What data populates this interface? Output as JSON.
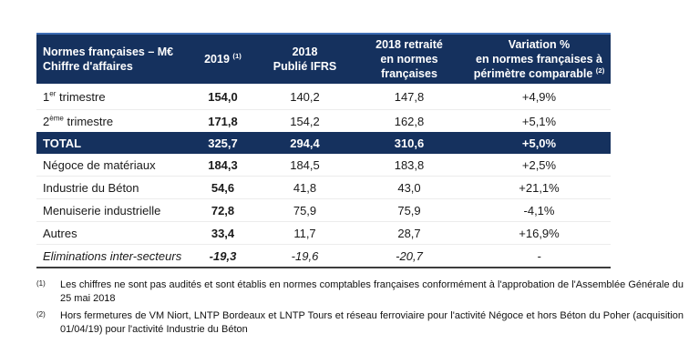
{
  "colors": {
    "navy": "#15315e",
    "header_top_line": "#3e6db5",
    "row_divider": "#ececec",
    "table_bottom_line": "#3d3d3d"
  },
  "table": {
    "header": {
      "col1_line1": "Normes françaises – M€",
      "col1_line2": "Chiffre d'affaires",
      "col2_main": "2019",
      "col2_sup": "(1)",
      "col3_line1": "2018",
      "col3_line2": "Publié IFRS",
      "col4_line1": "2018 retraité",
      "col4_line2": "en normes françaises",
      "col5_line1": "Variation %",
      "col5_line2": "en normes françaises à",
      "col5_line3": "périmètre comparable",
      "col5_sup": "(2)"
    },
    "rows": [
      {
        "label_pre": "1",
        "label_sup": "er",
        "label_post": " trimestre",
        "y2019": "154,0",
        "y2018_publie": "140,2",
        "y2018_retraite": "147,8",
        "variation": "+4,9%"
      },
      {
        "label_pre": "2",
        "label_sup": "ème",
        "label_post": " trimestre",
        "y2019": "171,8",
        "y2018_publie": "154,2",
        "y2018_retraite": "162,8",
        "variation": "+5,1%"
      },
      {
        "label_pre": "TOTAL",
        "label_sup": "",
        "label_post": "",
        "y2019": "325,7",
        "y2018_publie": "294,4",
        "y2018_retraite": "310,6",
        "variation": "+5,0%"
      },
      {
        "label_pre": "Négoce de matériaux",
        "label_sup": "",
        "label_post": "",
        "y2019": "184,3",
        "y2018_publie": "184,5",
        "y2018_retraite": "183,8",
        "variation": "+2,5%"
      },
      {
        "label_pre": "Industrie du Béton",
        "label_sup": "",
        "label_post": "",
        "y2019": "54,6",
        "y2018_publie": "41,8",
        "y2018_retraite": "43,0",
        "variation": "+21,1%"
      },
      {
        "label_pre": "Menuiserie industrielle",
        "label_sup": "",
        "label_post": "",
        "y2019": "72,8",
        "y2018_publie": "75,9",
        "y2018_retraite": "75,9",
        "variation": "-4,1%"
      },
      {
        "label_pre": "Autres",
        "label_sup": "",
        "label_post": "",
        "y2019": "33,4",
        "y2018_publie": "11,7",
        "y2018_retraite": "28,7",
        "variation": "+16,9%"
      },
      {
        "label_pre": "Eliminations inter-secteurs",
        "label_sup": "",
        "label_post": "",
        "y2019": "-19,3",
        "y2018_publie": "-19,6",
        "y2018_retraite": "-20,7",
        "variation": "-"
      }
    ]
  },
  "footnotes": [
    {
      "marker": "(1)",
      "text": "Les chiffres ne sont pas audités et sont établis en normes comptables françaises conformément à l'approbation de l'Assemblée Générale du 25 mai 2018"
    },
    {
      "marker": "(2)",
      "text": "Hors fermetures de VM Niort, LNTP Bordeaux et LNTP Tours et réseau ferroviaire pour l'activité Négoce et hors Béton du Poher (acquisition 01/04/19) pour l'activité Industrie du Béton"
    }
  ]
}
